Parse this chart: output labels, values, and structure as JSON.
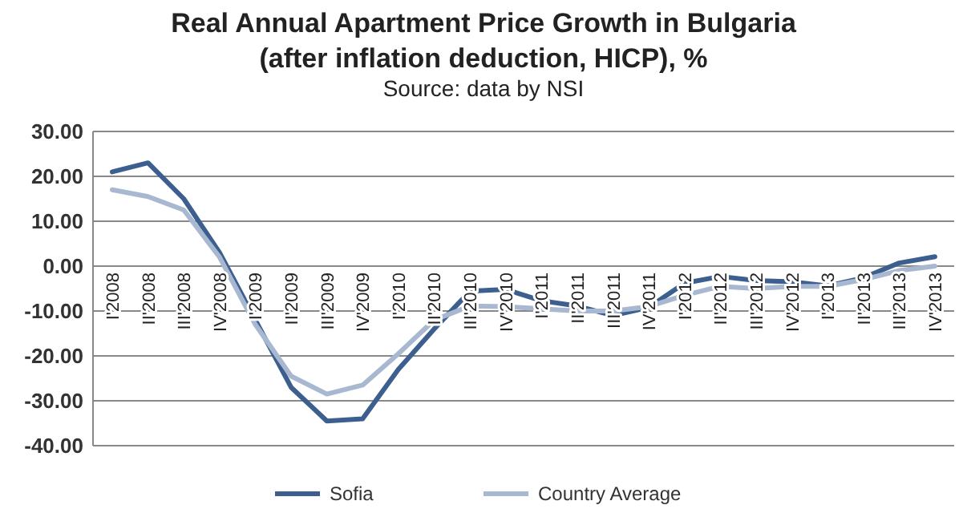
{
  "chart_data": {
    "type": "line",
    "title": "Real Annual Apartment Price Growth in Bulgaria (after inflation deduction, HICP), %",
    "subtitle": "Source: data by NSI",
    "categories": [
      "I'2008",
      "II'2008",
      "III'2008",
      "IV'2008",
      "I'2009",
      "II'2009",
      "III'2009",
      "IV'2009",
      "I'2010",
      "II'2010",
      "III'2010",
      "IV'2010",
      "I'2011",
      "II'2011",
      "III'2011",
      "IV'2011",
      "I'2012",
      "II'2012",
      "III'2012",
      "IV'2012",
      "I'2013",
      "II'2013",
      "III'2013",
      "IV'2013"
    ],
    "series": [
      {
        "name": "Sofia",
        "color": "#3d5f8f",
        "values": [
          21,
          23,
          15,
          3,
          -12,
          -27,
          -34.5,
          -34,
          -23,
          -14,
          -5.6,
          -5.2,
          -7.7,
          -8.9,
          -11,
          -9.2,
          -3.8,
          -2.3,
          -3.2,
          -3.5,
          -4.4,
          -2.6,
          0.7,
          2.1
        ]
      },
      {
        "name": "Country Average",
        "color": "#a8b8d0",
        "values": [
          17,
          15.5,
          12.5,
          2,
          -13,
          -24.5,
          -28.5,
          -26.5,
          -19.5,
          -12,
          -8.9,
          -9,
          -9.5,
          -10,
          -10,
          -9,
          -6.5,
          -4.5,
          -5,
          -4.5,
          -4.5,
          -3,
          -1,
          0
        ]
      }
    ],
    "ylim": [
      -40,
      30
    ],
    "yticks": [
      {
        "value": -40,
        "label": "-40.00"
      },
      {
        "value": -30,
        "label": "-30.00"
      },
      {
        "value": -20,
        "label": "-20.00"
      },
      {
        "value": -10,
        "label": "-10.00"
      },
      {
        "value": 0,
        "label": "0.00"
      },
      {
        "value": 10,
        "label": "10.00"
      },
      {
        "value": 20,
        "label": "20.00"
      },
      {
        "value": 30,
        "label": "30.00"
      }
    ],
    "grid": "y",
    "legend": "bottom",
    "marker": "none",
    "line_style": "solid"
  }
}
